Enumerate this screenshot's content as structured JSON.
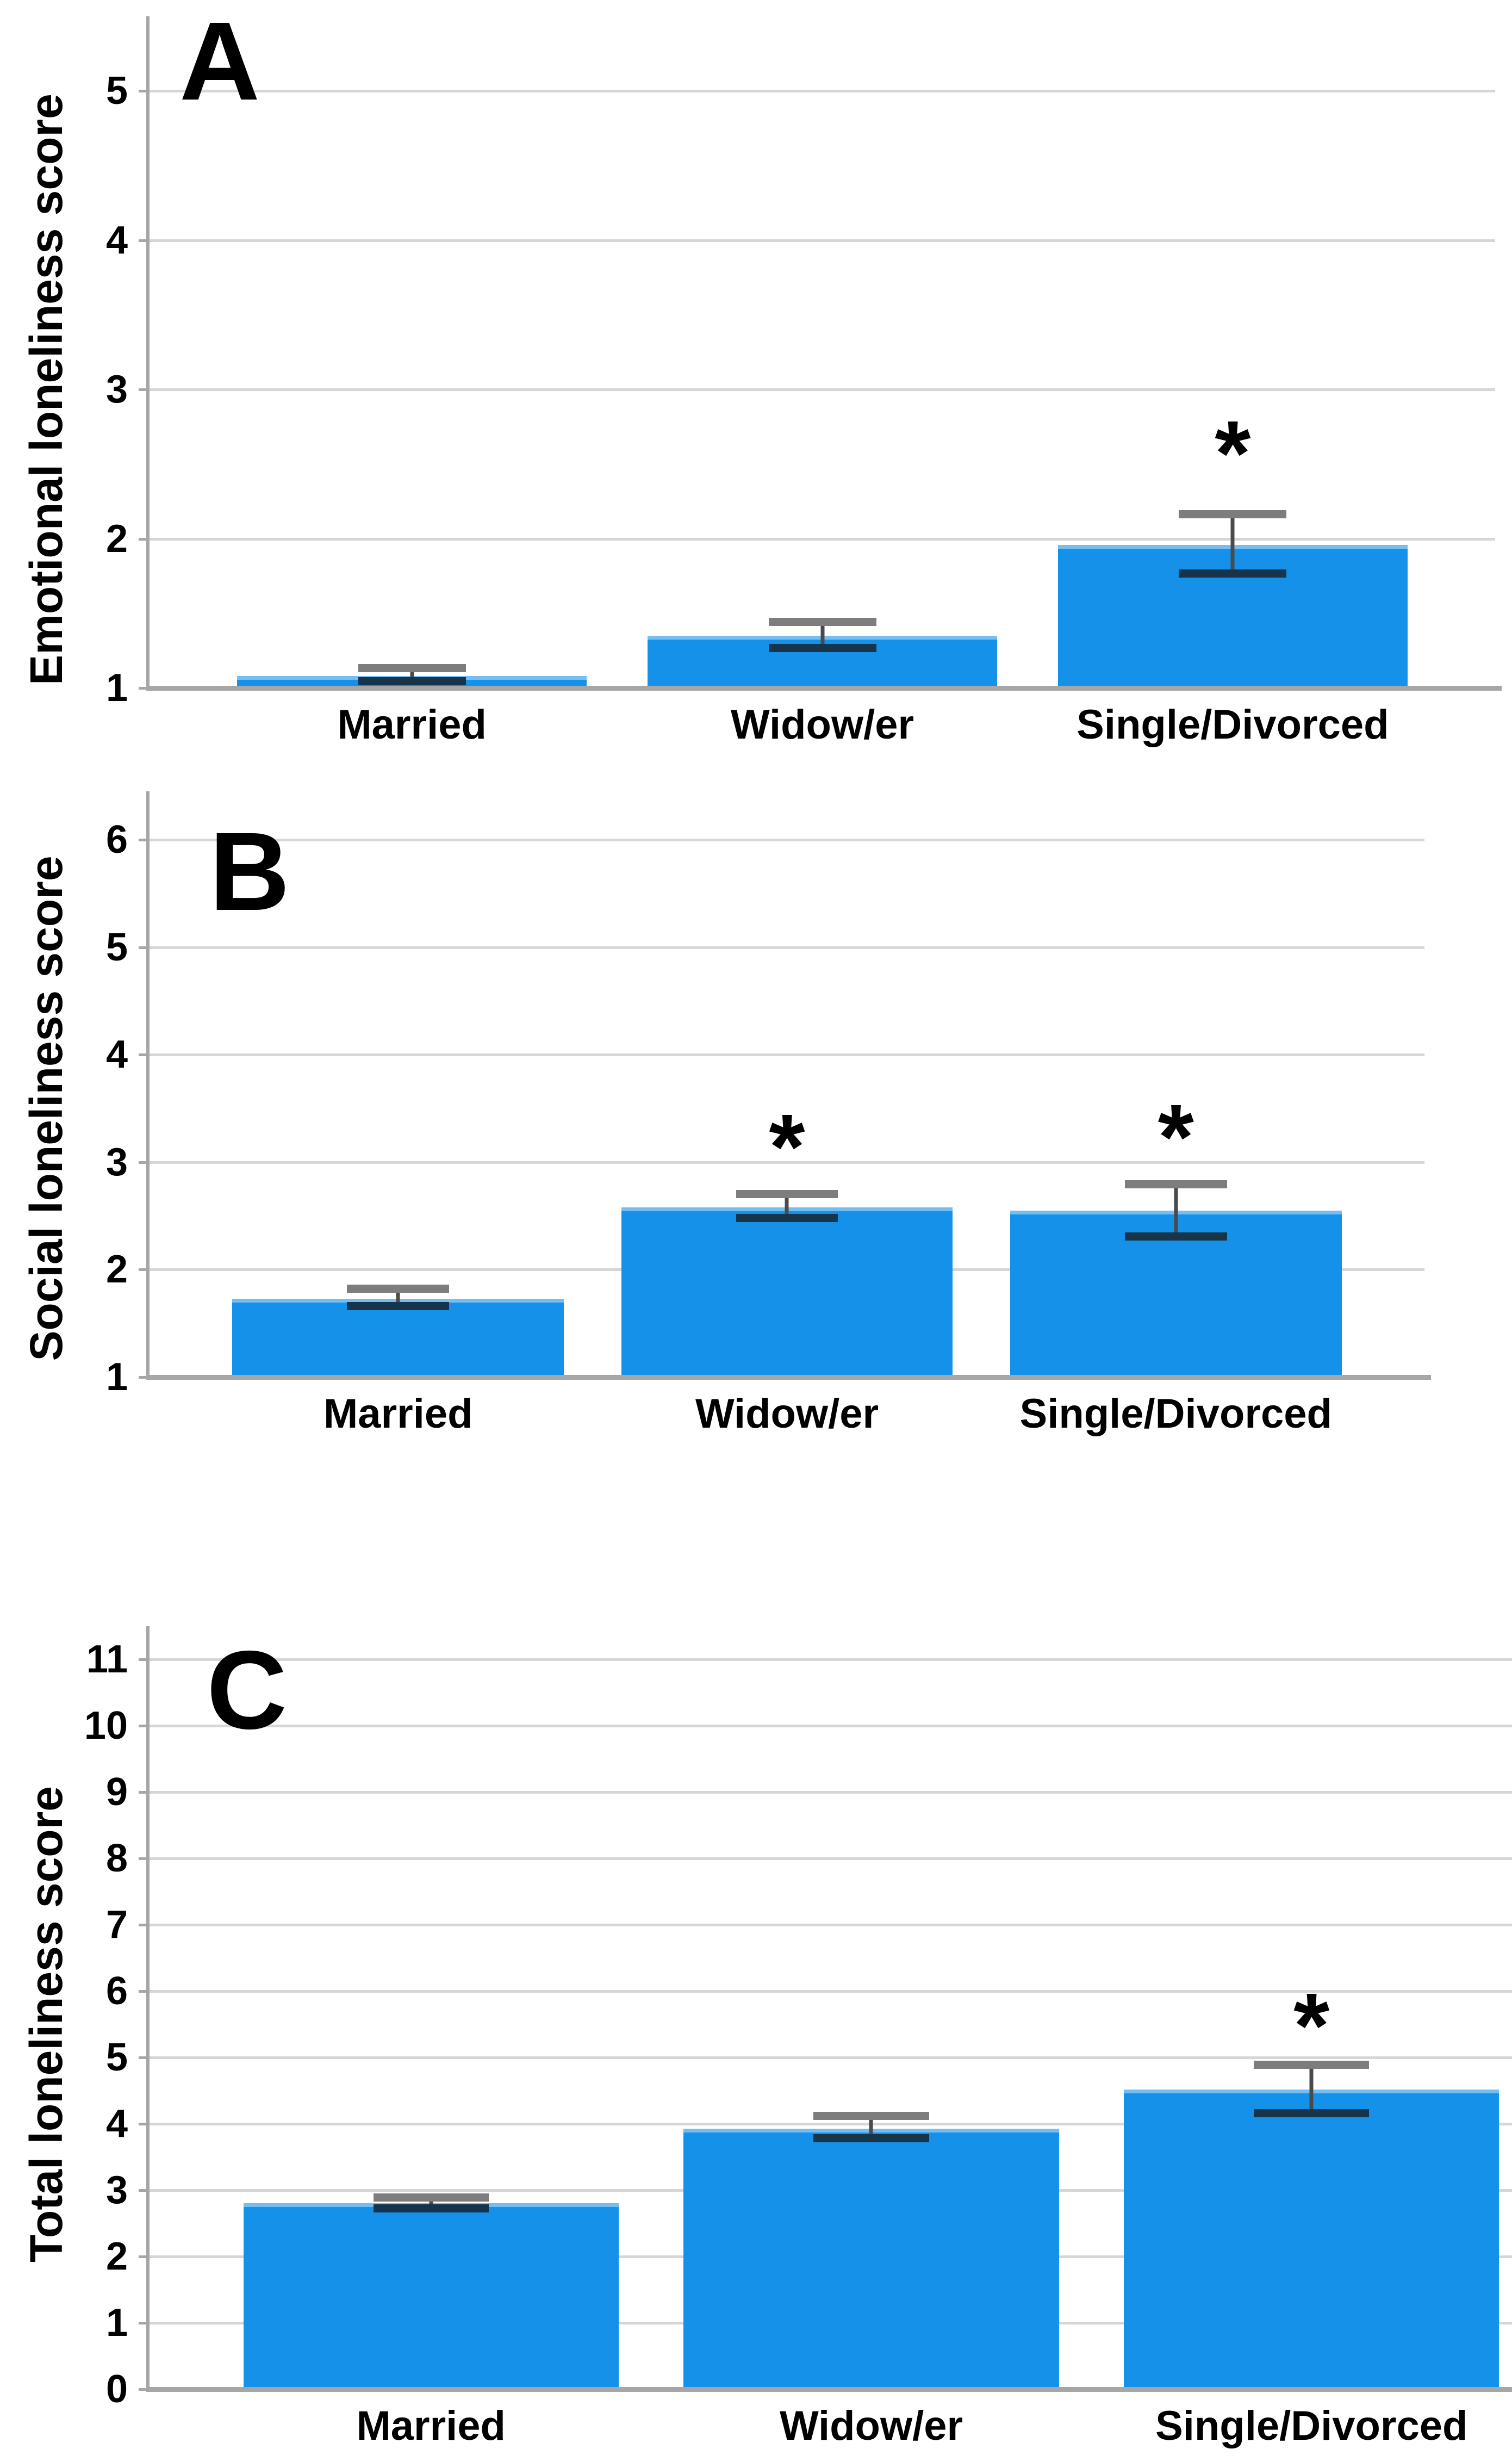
{
  "colors": {
    "background": "#ffffff",
    "bar_fill": "#1591e9",
    "bar_top_highlight": "#74bef2",
    "gridline": "#d6d6d6",
    "axis": "#a6a6a6",
    "error_line": "#4a4a4a",
    "error_cap_top": "#7d7d7d",
    "error_cap_bottom": "#16354a",
    "text": "#000000"
  },
  "chart_data": [
    {
      "type": "bar",
      "panel_label": "A",
      "ylabel": "Emotional loneliness score",
      "xlabel": "",
      "categories": [
        "Married",
        "Widow/er",
        "Single/Divorced"
      ],
      "values": [
        1.08,
        1.35,
        1.96
      ],
      "err_low": [
        1.02,
        1.24,
        1.74
      ],
      "err_high": [
        1.16,
        1.47,
        2.19
      ],
      "significant": [
        false,
        false,
        true
      ],
      "sig_marker": "*",
      "yticks": [
        1,
        2,
        3,
        4,
        5
      ],
      "ylim": [
        1,
        5.5
      ],
      "grid": "on",
      "legend": "none"
    },
    {
      "type": "bar",
      "panel_label": "B",
      "ylabel": "Social loneliness score",
      "xlabel": "",
      "categories": [
        "Married",
        "Widow/er",
        "Single/Divorced"
      ],
      "values": [
        1.73,
        2.58,
        2.55
      ],
      "err_low": [
        1.62,
        2.44,
        2.27
      ],
      "err_high": [
        1.86,
        2.74,
        2.83
      ],
      "significant": [
        false,
        true,
        true
      ],
      "sig_marker": "*",
      "yticks": [
        1,
        2,
        3,
        4,
        5,
        6
      ],
      "ylim": [
        1,
        6.45
      ],
      "grid": "on",
      "legend": "none"
    },
    {
      "type": "bar",
      "panel_label": "C",
      "ylabel": "Total loneliness score",
      "xlabel": "",
      "categories": [
        "Married",
        "Widow/er",
        "Single/Divorced"
      ],
      "values": [
        2.8,
        3.93,
        4.52
      ],
      "err_low": [
        2.66,
        3.72,
        4.1
      ],
      "err_high": [
        2.95,
        4.18,
        4.95
      ],
      "significant": [
        false,
        false,
        true
      ],
      "sig_marker": "*",
      "yticks": [
        0,
        1,
        2,
        3,
        4,
        5,
        6,
        7,
        8,
        9,
        10,
        11
      ],
      "ylim": [
        0,
        11.5
      ],
      "grid": "on",
      "legend": "none"
    }
  ]
}
